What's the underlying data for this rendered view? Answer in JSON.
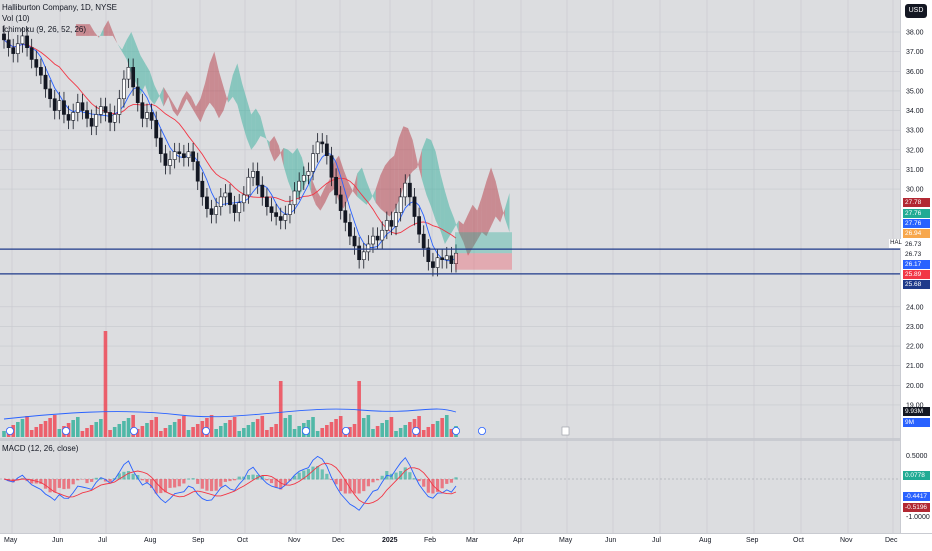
{
  "legend": {
    "title": "Halliburton Company, 1D, NYSE",
    "volume": "Vol (10)",
    "ichimoku": "Ichimoku (9, 26, 52, 26)",
    "macd": "MACD (12, 26, close)"
  },
  "currency_button": "USD",
  "price_axis": {
    "ticks": [
      "38.00",
      "37.00",
      "36.00",
      "35.00",
      "34.00",
      "33.00",
      "32.00",
      "31.00",
      "30.00",
      "24.00",
      "23.00",
      "22.00",
      "21.00",
      "20.00",
      "19.00"
    ],
    "tags": [
      {
        "text": "27.78",
        "color": "#b22833"
      },
      {
        "text": "27.76",
        "color": "#22ab94"
      },
      {
        "text": "27.76",
        "color": "#2962ff"
      },
      {
        "text": "26.94",
        "color": "#f7a74c"
      },
      {
        "text": "26.73",
        "color": "#ffffff"
      },
      {
        "text": "26.17",
        "color": "#2962ff"
      },
      {
        "text": "25.89",
        "color": "#f23645"
      },
      {
        "text": "25.68",
        "color": "#1e3a8a"
      },
      {
        "text": "9.93M",
        "color": "#131722"
      },
      {
        "text": "9M",
        "color": "#2962ff"
      }
    ],
    "symbol_label": "HAL",
    "symbol_price": "26.73"
  },
  "macd_axis": {
    "ticks": [
      "0.5000",
      "-1.0000"
    ],
    "tags": [
      {
        "text": "0.0778",
        "color": "#22ab94"
      },
      {
        "text": "-0.4417",
        "color": "#2962ff"
      },
      {
        "text": "-0.5196",
        "color": "#b22833"
      }
    ]
  },
  "time_axis": [
    "May",
    "Jun",
    "Jul",
    "Aug",
    "Sep",
    "Oct",
    "Nov",
    "Dec",
    "2025",
    "Feb",
    "Mar",
    "Apr",
    "May",
    "Jun",
    "Jul",
    "Aug",
    "Sep",
    "Oct",
    "Nov",
    "Dec"
  ],
  "colors": {
    "up": "#22ab94",
    "down": "#f23645",
    "candle": "#131722",
    "cloud_bear": "#b22833",
    "cloud_bull": "#22ab94",
    "baseline": "#f23645",
    "conversion": "#2962ff",
    "hline": "#1e3a8a"
  },
  "chart_data": {
    "type": "candlestick",
    "symbol": "HAL",
    "timeframe": "1D",
    "closes": [
      37.6,
      37.2,
      36.9,
      37.4,
      37.8,
      37.2,
      36.6,
      36.2,
      35.8,
      35.1,
      34.6,
      34.0,
      34.5,
      33.8,
      33.5,
      33.9,
      34.4,
      34.0,
      33.6,
      33.2,
      33.8,
      34.2,
      33.9,
      33.4,
      33.8,
      34.6,
      35.6,
      36.2,
      35.2,
      34.4,
      33.6,
      33.9,
      33.5,
      32.6,
      31.8,
      31.2,
      31.5,
      31.9,
      31.8,
      31.6,
      31.9,
      31.4,
      30.4,
      29.6,
      29.0,
      28.7,
      29.1,
      29.6,
      29.8,
      29.2,
      28.8,
      29.3,
      29.7,
      30.6,
      30.9,
      30.2,
      29.6,
      29.1,
      28.8,
      28.6,
      28.4,
      28.7,
      29.2,
      29.9,
      30.4,
      30.7,
      30.9,
      31.8,
      32.4,
      32.3,
      31.7,
      30.6,
      29.7,
      28.9,
      28.3,
      27.6,
      27.1,
      26.4,
      26.8,
      27.2,
      27.6,
      27.4,
      27.9,
      28.4,
      28.1,
      28.8,
      29.6,
      30.3,
      29.6,
      28.6,
      27.7,
      27.0,
      26.3,
      26.0,
      26.5,
      26.4,
      26.6,
      26.2,
      26.73
    ],
    "horizontal_levels": [
      26.94,
      25.68
    ],
    "volume_last": "9.93M",
    "macd": {
      "histogram": 0.0778,
      "macd": -0.4417,
      "signal": -0.5196
    }
  }
}
